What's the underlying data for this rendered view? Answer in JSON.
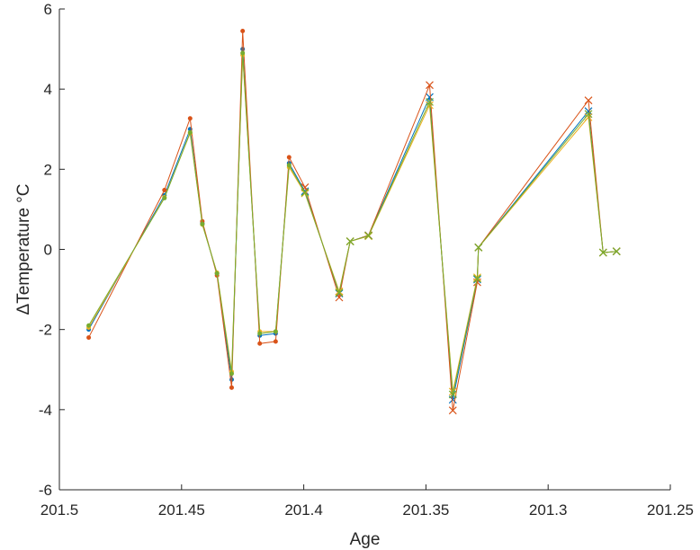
{
  "chart_data": {
    "type": "line",
    "xlabel": "Age",
    "ylabel": "ΔTemperature °C",
    "xlim": [
      201.5,
      201.25
    ],
    "x_reversed": true,
    "ylim": [
      -6,
      6
    ],
    "xticks": [
      201.5,
      201.45,
      201.4,
      201.35,
      201.3,
      201.25
    ],
    "xtick_labels": [
      "201.5",
      "201.45",
      "201.4",
      "201.35",
      "201.3",
      "201.25"
    ],
    "yticks": [
      -6,
      -4,
      -2,
      0,
      2,
      4,
      6
    ],
    "ytick_labels": [
      "-6",
      "-4",
      "-2",
      "0",
      "2",
      "4",
      "6"
    ],
    "grid": false,
    "colors": [
      "#0072BD",
      "#D95319",
      "#EDB120",
      "#77AC30"
    ],
    "x": [
      201.488,
      201.457,
      201.4465,
      201.4415,
      201.4355,
      201.4295,
      201.425,
      201.418,
      201.4115,
      201.406,
      201.3995,
      201.3855,
      201.381,
      201.3735,
      201.3485,
      201.339,
      201.329,
      201.3285,
      201.2835,
      201.2775,
      201.272
    ],
    "marker_switch_index": 10,
    "series": [
      {
        "values": [
          -2.0,
          1.35,
          3.0,
          0.65,
          -0.6,
          -3.25,
          5.0,
          -2.15,
          -2.1,
          2.15,
          1.45,
          -1.1,
          0.2,
          0.35,
          3.8,
          -3.75,
          -0.75,
          0.05,
          3.45,
          -0.08,
          -0.05
        ]
      },
      {
        "values": [
          -2.2,
          1.48,
          3.27,
          0.7,
          -0.65,
          -3.45,
          5.45,
          -2.35,
          -2.3,
          2.3,
          1.55,
          -1.2,
          0.2,
          0.35,
          4.1,
          -4.02,
          -0.82,
          0.05,
          3.72,
          -0.08,
          -0.05
        ]
      },
      {
        "values": [
          -1.95,
          1.3,
          2.9,
          0.62,
          -0.58,
          -3.05,
          4.85,
          -2.05,
          -2.05,
          2.05,
          1.4,
          -1.05,
          0.2,
          0.33,
          3.6,
          -3.55,
          -0.7,
          0.05,
          3.3,
          -0.08,
          -0.05
        ]
      },
      {
        "values": [
          -1.9,
          1.28,
          2.92,
          0.63,
          -0.6,
          -3.1,
          4.9,
          -2.1,
          -2.05,
          2.1,
          1.42,
          -1.08,
          0.2,
          0.34,
          3.68,
          -3.62,
          -0.73,
          0.05,
          3.38,
          -0.08,
          -0.05
        ]
      }
    ]
  }
}
